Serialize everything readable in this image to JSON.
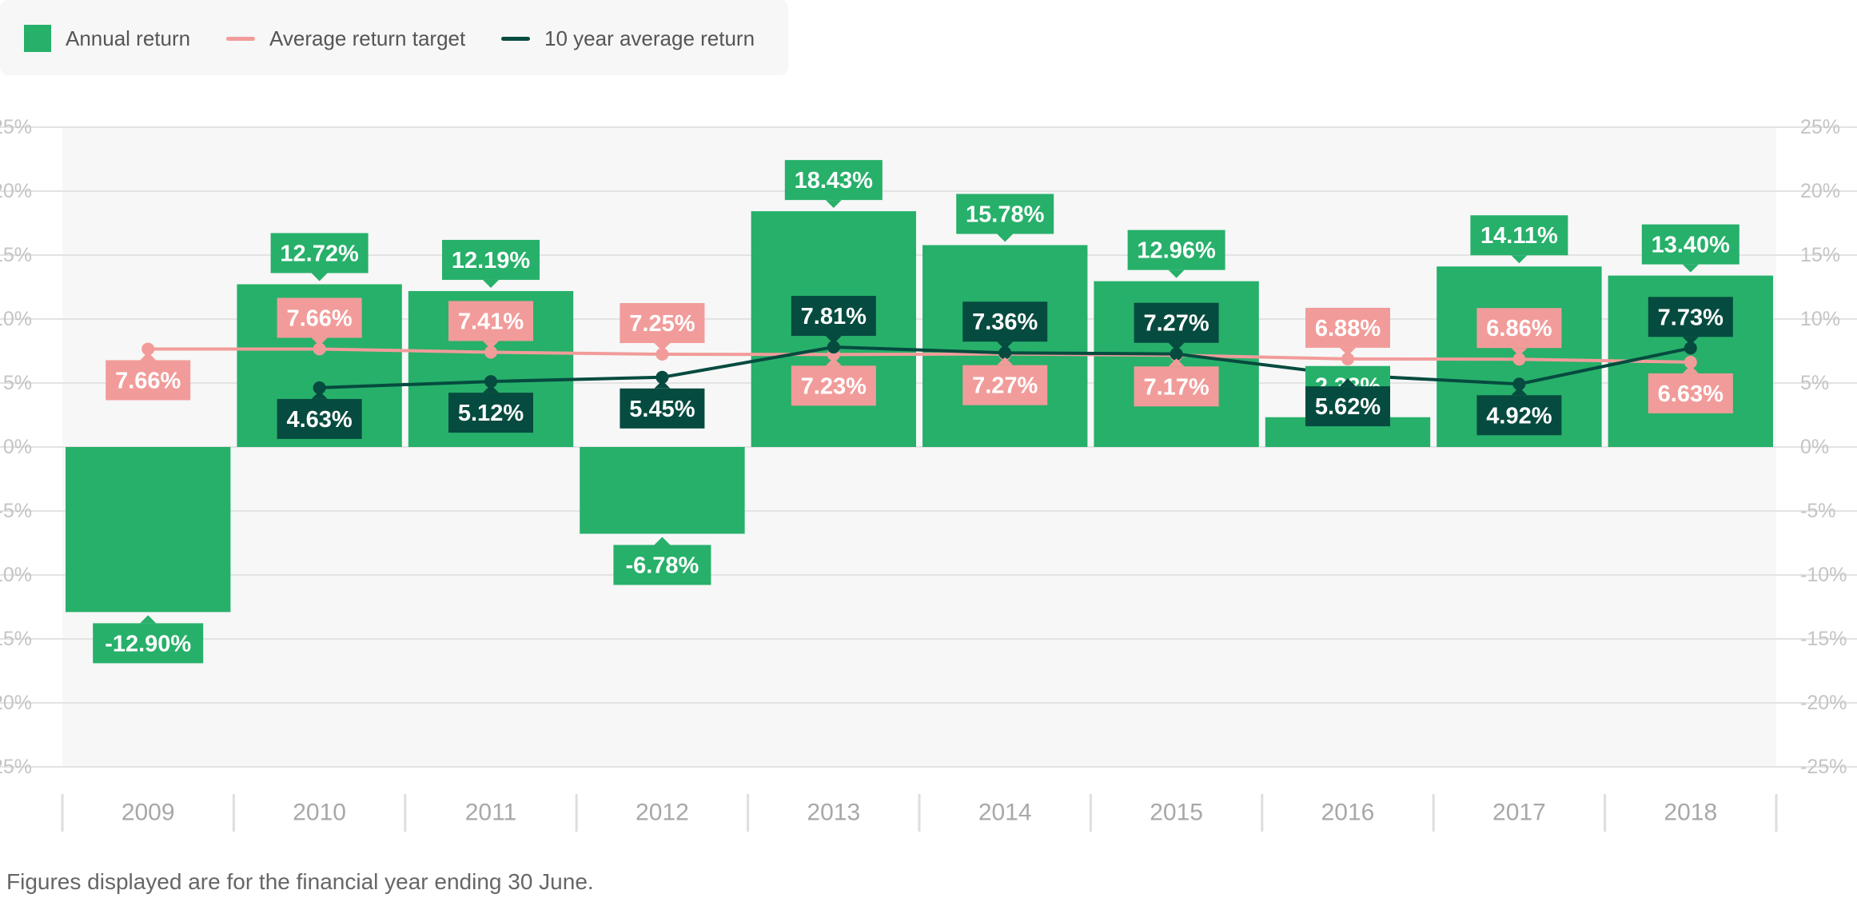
{
  "legend": {
    "items": [
      {
        "label": "Annual return",
        "color": "#27b06a",
        "kind": "box"
      },
      {
        "label": "Average return target",
        "color": "#f19c9a",
        "kind": "line"
      },
      {
        "label": "10 year average return",
        "color": "#064b3f",
        "kind": "line"
      }
    ]
  },
  "footnote": "Figures displayed are for the financial year ending 30 June.",
  "colors": {
    "bar": "#27b06a",
    "target": "#f19c9a",
    "average": "#064b3f",
    "plot_background": "#f7f7f7",
    "grid": "#e3e3e3",
    "axis_text": "#c4c4c4"
  },
  "chart_data": {
    "type": "bar",
    "categories": [
      "2009",
      "2010",
      "2011",
      "2012",
      "2013",
      "2014",
      "2015",
      "2016",
      "2017",
      "2018"
    ],
    "series": [
      {
        "name": "Annual return",
        "type": "bar",
        "values": [
          -12.9,
          12.72,
          12.19,
          -6.78,
          18.43,
          15.78,
          12.96,
          2.33,
          14.11,
          13.4
        ],
        "labels": [
          "-12.90%",
          "12.72%",
          "12.19%",
          "-6.78%",
          "18.43%",
          "15.78%",
          "12.96%",
          "2.33%",
          "14.11%",
          "13.40%"
        ]
      },
      {
        "name": "Average return target",
        "type": "line",
        "values": [
          7.66,
          7.66,
          7.41,
          7.25,
          7.23,
          7.27,
          7.17,
          6.88,
          6.86,
          6.63
        ],
        "labels": [
          "7.66%",
          "7.66%",
          "7.41%",
          "7.25%",
          "7.23%",
          "7.27%",
          "7.17%",
          "6.88%",
          "6.86%",
          "6.63%"
        ],
        "label_position": [
          "below",
          "above",
          "above",
          "above",
          "below",
          "below",
          "below",
          "above",
          "above",
          "below"
        ]
      },
      {
        "name": "10 year average return",
        "type": "line",
        "values": [
          null,
          4.63,
          5.12,
          5.45,
          7.81,
          7.36,
          7.27,
          5.62,
          4.92,
          7.73
        ],
        "labels": [
          "",
          "4.63%",
          "5.12%",
          "5.45%",
          "7.81%",
          "7.36%",
          "7.27%",
          "5.62%",
          "4.92%",
          "7.73%"
        ],
        "label_position": [
          "",
          "below",
          "below",
          "below",
          "above",
          "above",
          "above",
          "below",
          "below",
          "above"
        ]
      }
    ],
    "ylim": [
      -25,
      25
    ],
    "yticks": [
      "-25%",
      "-20%",
      "-15%",
      "-10%",
      "-5%",
      "0%",
      "5%",
      "10%",
      "15%",
      "20%",
      "25%"
    ],
    "ytick_values": [
      -25,
      -20,
      -15,
      -10,
      -5,
      0,
      5,
      10,
      15,
      20,
      25
    ],
    "grid": true,
    "legend_position": "top-left"
  }
}
